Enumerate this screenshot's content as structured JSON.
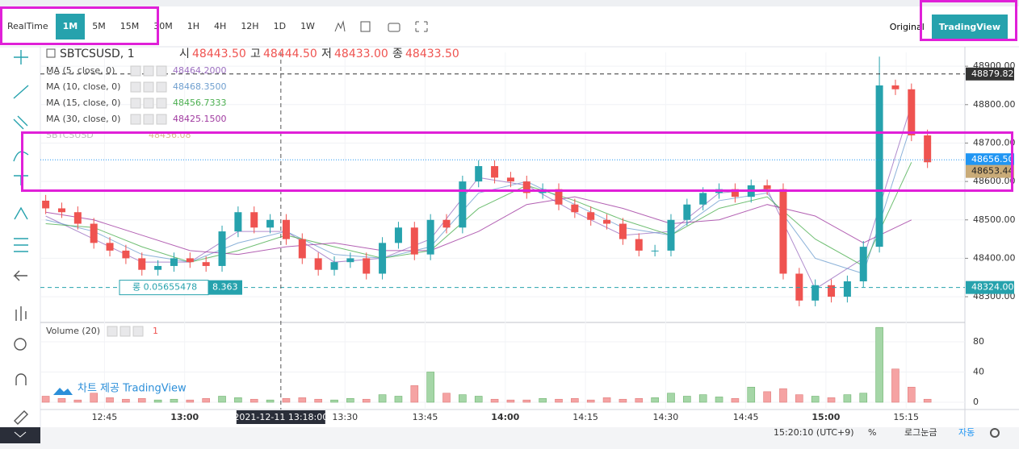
{
  "toolbar": {
    "intervals": [
      "RealTime",
      "1M",
      "5M",
      "15M",
      "30M",
      "1H",
      "4H",
      "12H",
      "1D",
      "1W"
    ],
    "active": "1M",
    "views": [
      "Original",
      "TradingView"
    ],
    "active_view": "TradingView"
  },
  "chart_data": {
    "type": "candlestick",
    "symbol": "SBTCSUSD, 1",
    "ohlc_legend": [
      {
        "name": "시",
        "value": "48443.50"
      },
      {
        "name": "고",
        "value": "48444.50"
      },
      {
        "name": "저",
        "value": "48433.00"
      },
      {
        "name": "종",
        "value": "48433.50"
      }
    ],
    "x": [
      "12:34",
      "12:37",
      "12:40",
      "12:43",
      "12:46",
      "12:49",
      "12:52",
      "12:55",
      "12:58",
      "13:01",
      "13:04",
      "13:07",
      "13:10",
      "13:13",
      "13:16",
      "13:19",
      "13:22",
      "13:25",
      "13:28",
      "13:31",
      "13:34",
      "13:37",
      "13:40",
      "13:43",
      "13:46",
      "13:49",
      "13:52",
      "13:55",
      "13:58",
      "14:01",
      "14:04",
      "14:07",
      "14:10",
      "14:13",
      "14:16",
      "14:19",
      "14:22",
      "14:25",
      "14:28",
      "14:31",
      "14:34",
      "14:37",
      "14:40",
      "14:43",
      "14:46",
      "14:49",
      "14:52",
      "14:55",
      "14:58",
      "15:01",
      "15:04",
      "15:07",
      "15:10",
      "15:13",
      "15:16",
      "15:19"
    ],
    "open": [
      48550,
      48530,
      48520,
      48490,
      48440,
      48420,
      48400,
      48370,
      48380,
      48400,
      48390,
      48380,
      48470,
      48520,
      48480,
      48500,
      48450,
      48400,
      48370,
      48390,
      48400,
      48360,
      48440,
      48480,
      48410,
      48500,
      48480,
      48600,
      48640,
      48610,
      48600,
      48570,
      48580,
      48540,
      48520,
      48500,
      48490,
      48450,
      48420,
      48420,
      48500,
      48540,
      48570,
      48580,
      48560,
      48590,
      48580,
      48360,
      48290,
      48330,
      48300,
      48340,
      48430,
      48850,
      48840,
      48720
    ],
    "high": [
      48565,
      48545,
      48535,
      48505,
      48455,
      48435,
      48415,
      48395,
      48415,
      48415,
      48405,
      48485,
      48535,
      48535,
      48515,
      48515,
      48465,
      48415,
      48405,
      48415,
      48415,
      48455,
      48495,
      48495,
      48515,
      48515,
      48615,
      48655,
      48655,
      48625,
      48615,
      48595,
      48595,
      48555,
      48535,
      48515,
      48505,
      48465,
      48435,
      48515,
      48555,
      48585,
      48595,
      48595,
      48605,
      48605,
      48595,
      48375,
      48345,
      48345,
      48355,
      48445,
      48925,
      48865,
      48855,
      48735
    ],
    "low": [
      48515,
      48505,
      48475,
      48425,
      48405,
      48385,
      48355,
      48355,
      48365,
      48375,
      48365,
      48365,
      48455,
      48465,
      48465,
      48435,
      48385,
      48355,
      48355,
      48375,
      48345,
      48345,
      48425,
      48395,
      48395,
      48465,
      48465,
      48585,
      48595,
      48585,
      48555,
      48555,
      48525,
      48505,
      48485,
      48475,
      48435,
      48405,
      48405,
      48405,
      48485,
      48525,
      48555,
      48545,
      48545,
      48565,
      48345,
      48275,
      48275,
      48285,
      48285,
      48325,
      48415,
      48825,
      48705,
      48635
    ],
    "close": [
      48530,
      48520,
      48490,
      48440,
      48420,
      48400,
      48370,
      48380,
      48400,
      48390,
      48380,
      48470,
      48520,
      48480,
      48500,
      48450,
      48400,
      48370,
      48390,
      48400,
      48360,
      48440,
      48480,
      48410,
      48500,
      48480,
      48600,
      48640,
      48610,
      48600,
      48570,
      48580,
      48540,
      48520,
      48500,
      48490,
      48450,
      48420,
      48420,
      48500,
      48540,
      48570,
      48580,
      48560,
      48590,
      48580,
      48360,
      48290,
      48330,
      48300,
      48340,
      48430,
      48850,
      48840,
      48720,
      48650
    ],
    "up_color": "#26a2ad",
    "down_color": "#ef5350",
    "xlim": [
      "12:33",
      "15:26"
    ],
    "ylim": [
      48233,
      48936
    ],
    "yticks": [
      {
        "value": 48300,
        "label": "48300.00"
      },
      {
        "value": 48400,
        "label": "48400.00"
      },
      {
        "value": 48500,
        "label": "48500.00"
      },
      {
        "value": 48600,
        "label": "48600.00"
      },
      {
        "value": 48700,
        "label": "48700.00"
      },
      {
        "value": 48800,
        "label": "48800.00"
      },
      {
        "value": 48900,
        "label": "48900.00"
      }
    ],
    "xticks": [
      "12:45",
      "13:00",
      "13:30",
      "13:45",
      "14:00",
      "14:15",
      "14:30",
      "14:45",
      "15:00",
      "15:15"
    ],
    "crosshair": {
      "x": "13:18",
      "label": "2021-12-11 13:18:00"
    },
    "price_lines": [
      {
        "value": 48879.82,
        "label": "48879.82",
        "color": "#333333",
        "style": "dashed"
      },
      {
        "value": 48656.5,
        "label": "48656.50",
        "color": "#2196f3",
        "style": "dotted"
      },
      {
        "value": 48653.44,
        "label": "48653.44",
        "color": "#c9ab78",
        "style": "none"
      },
      {
        "value": 48324,
        "label": "48324.00",
        "color": "#26a2ad",
        "style": "dashed"
      }
    ],
    "position": {
      "label": "롱 0.05655478",
      "value": "8.363"
    },
    "ma": {
      "x": [
        "12:34",
        "12:43",
        "12:52",
        "13:01",
        "13:10",
        "13:19",
        "13:28",
        "13:37",
        "13:46",
        "13:55",
        "14:04",
        "14:13",
        "14:22",
        "14:31",
        "14:40",
        "14:49",
        "14:58",
        "15:07",
        "15:16"
      ],
      "series": [
        {
          "name": "MA (5, close, 0)",
          "color": "#9c6fc0",
          "value_label": "48464.2000",
          "values": [
            48510,
            48450,
            48390,
            48390,
            48470,
            48470,
            48390,
            48400,
            48450,
            48610,
            48590,
            48520,
            48460,
            48470,
            48570,
            48580,
            48320,
            48400,
            48800
          ]
        },
        {
          "name": "MA (10, close, 0)",
          "color": "#6f9fcf",
          "value_label": "48468.3500",
          "values": [
            48500,
            48470,
            48410,
            48390,
            48440,
            48470,
            48410,
            48400,
            48430,
            48570,
            48600,
            48540,
            48480,
            48460,
            48550,
            48570,
            48400,
            48360,
            48750
          ]
        },
        {
          "name": "MA (15, close, 0)",
          "color": "#4caf50",
          "value_label": "48456.7333",
          "values": [
            48490,
            48480,
            48430,
            48390,
            48420,
            48460,
            48430,
            48400,
            48420,
            48530,
            48590,
            48550,
            48500,
            48460,
            48530,
            48560,
            48450,
            48380,
            48650
          ]
        },
        {
          "name": "MA (30, close, 0)",
          "color": "#a03aa0",
          "value_label": "48425.1500",
          "values": [
            48520,
            48500,
            48460,
            48420,
            48410,
            48430,
            48440,
            48420,
            48420,
            48470,
            48540,
            48560,
            48530,
            48490,
            48500,
            48540,
            48510,
            48440,
            48500
          ]
        }
      ]
    },
    "overlay": {
      "name": "SBTCSUSD",
      "value_label": "48436.08"
    },
    "volume": {
      "name": "Volume (20)",
      "value_label": "1",
      "up_color": "#a5d6a7",
      "down_color": "#f5a3a3",
      "ylim": [
        -9.6,
        105.6
      ],
      "yticks": [
        0,
        40,
        80
      ],
      "values": [
        8,
        5,
        3,
        12,
        6,
        4,
        5,
        3,
        4,
        3,
        5,
        8,
        6,
        4,
        3,
        5,
        6,
        4,
        3,
        5,
        4,
        10,
        8,
        22,
        40,
        12,
        10,
        8,
        4,
        3,
        3,
        5,
        4,
        5,
        3,
        6,
        4,
        5,
        6,
        12,
        8,
        10,
        7,
        5,
        20,
        14,
        18,
        10,
        8,
        6,
        10,
        12,
        99,
        44,
        20,
        4
      ]
    },
    "watermark": "차트 제공 TradingView"
  },
  "status_bar": {
    "time": "15:20:10 (UTC+9)",
    "items": [
      "%",
      "로그눈금",
      "자동"
    ]
  }
}
